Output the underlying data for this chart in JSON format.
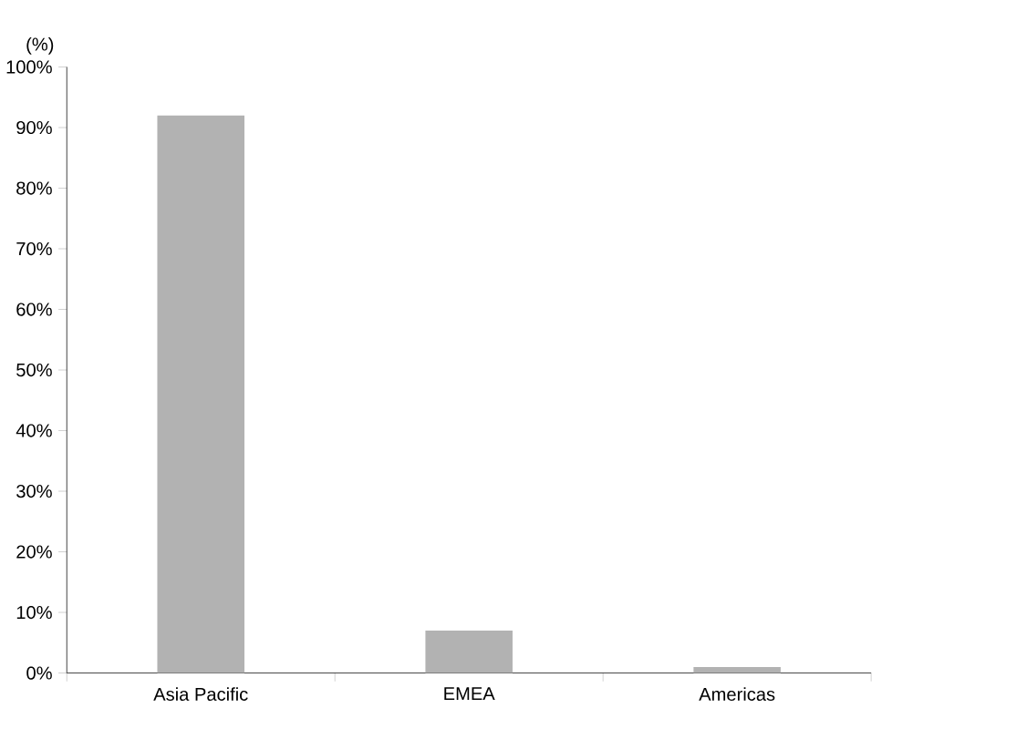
{
  "chart_data": {
    "type": "bar",
    "ylabel": "(%)",
    "categories": [
      "Asia Pacific",
      "EMEA",
      "Americas"
    ],
    "values": [
      92,
      7,
      1
    ],
    "color": "#b2b2b2",
    "ylim": [
      0,
      100
    ],
    "yticks": [
      {
        "value": 0,
        "label": "0%"
      },
      {
        "value": 10,
        "label": "10%"
      },
      {
        "value": 20,
        "label": "20%"
      },
      {
        "value": 30,
        "label": "30%"
      },
      {
        "value": 40,
        "label": "40%"
      },
      {
        "value": 50,
        "label": "50%"
      },
      {
        "value": 60,
        "label": "60%"
      },
      {
        "value": 70,
        "label": "70%"
      },
      {
        "value": 80,
        "label": "80%"
      },
      {
        "value": 90,
        "label": "90%"
      },
      {
        "value": 100,
        "label": "100%"
      }
    ]
  }
}
